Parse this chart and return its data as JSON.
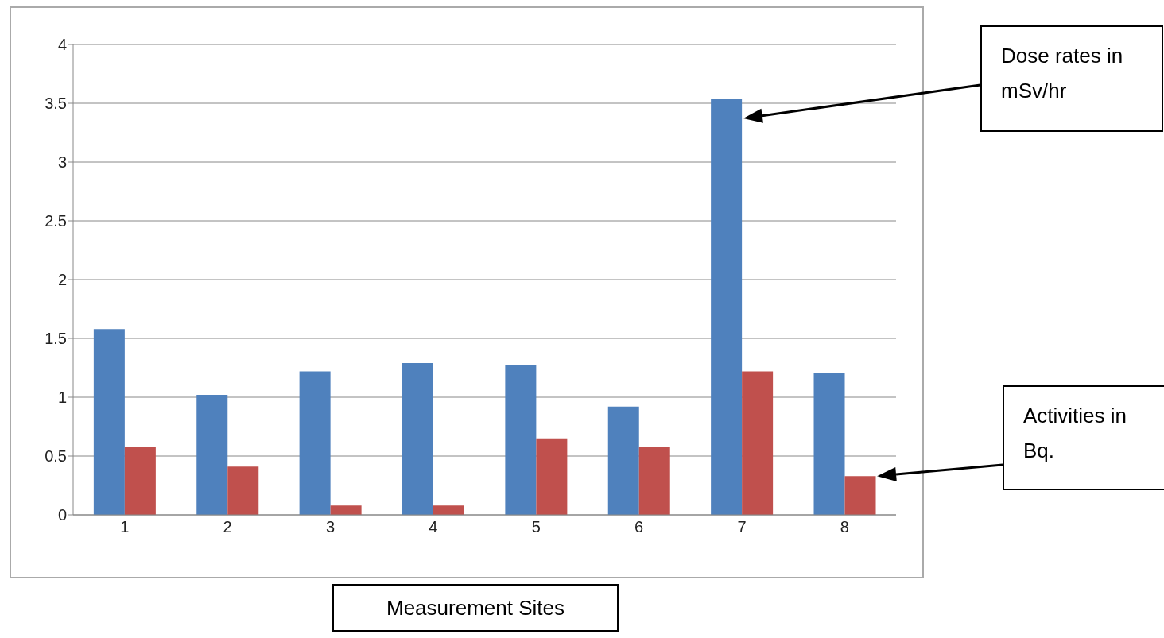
{
  "chart_data": {
    "type": "bar",
    "xlabel": "Measurement Sites",
    "categories": [
      "1",
      "2",
      "3",
      "4",
      "5",
      "6",
      "7",
      "8"
    ],
    "series": [
      {
        "color": "#4f81bd",
        "values": [
          1.58,
          1.02,
          1.22,
          1.29,
          1.27,
          0.92,
          3.54,
          1.21
        ]
      },
      {
        "color": "#c0504d",
        "values": [
          0.58,
          0.41,
          0.08,
          0.08,
          0.65,
          0.58,
          1.22,
          0.33
        ]
      }
    ],
    "ylim": [
      0,
      4
    ],
    "yticks": [
      0,
      0.5,
      1,
      1.5,
      2,
      2.5,
      3,
      3.5,
      4
    ],
    "grid": "y",
    "legend": false,
    "annotations": [
      "Dose rates in mSv/hr",
      "Activities in Bq."
    ]
  }
}
